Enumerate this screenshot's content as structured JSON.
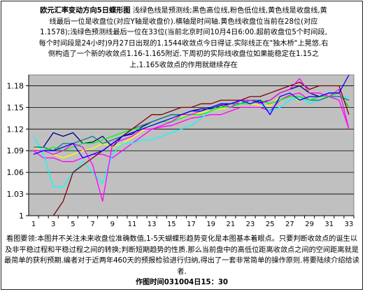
{
  "chart_data": {
    "type": "line",
    "title": "欧元汇率变动方向5日蝶形图",
    "description": "浅绿色线是预测线;黑色高位线,粉色低位线,黄色线是收盘线,黄线最后一位是收盘位(对应Y轴是收盘价).横轴是时间轴.黄色线收盘位当前在28位(对应1.1578);浅绿色预测线最后一位在33位(当前北京时间10月4日6:00.超前收盘位5个时间段,每个时间段是24小时)9月27日出现的1.1544收敛点今日得证.实际线正在\"独木桥\"上晃悠.右侧构造了一个新的收敛点1.16-1.165附近.下周初的实际线收盘位如果能稳定在1.15之上,1.165收敛点的作用就继续存在",
    "x_ticks": [
      "1",
      "3",
      "5",
      "7",
      "9",
      "11",
      "13",
      "15",
      "17",
      "19",
      "21",
      "23",
      "25",
      "27",
      "29",
      "31",
      "33"
    ],
    "y_ticks": [
      "1",
      "1.03",
      "1.06",
      "1.09",
      "1.12",
      "1.15",
      "1.18"
    ],
    "xlim": [
      1,
      33
    ],
    "ylim": [
      1.0,
      1.195
    ],
    "grid": true,
    "background": "#c0c0c0",
    "series": [
      {
        "color": "#000080",
        "values": [
          1.095,
          1.095,
          1.115,
          1.11,
          1.115,
          1.1,
          1.102,
          1.11,
          1.095,
          1.11,
          1.113,
          1.123,
          1.13,
          1.135,
          1.14,
          1.14,
          1.145,
          1.148,
          1.148,
          1.153,
          1.155,
          1.16,
          1.16,
          1.157,
          1.16,
          1.17,
          1.175,
          1.18,
          1.17,
          1.165,
          1.17,
          1.17,
          1.15
        ]
      },
      {
        "color": "#ff00ff",
        "values": [
          1.09,
          1.08,
          1.08,
          1.075,
          1.075,
          1.08,
          1.085,
          1.085,
          1.08,
          1.09,
          1.1,
          1.11,
          1.12,
          1.123,
          1.125,
          1.13,
          1.135,
          1.137,
          1.14,
          1.14,
          1.145,
          1.15,
          1.15,
          1.15,
          1.145,
          1.16,
          1.167,
          1.17,
          1.16,
          1.165,
          1.165,
          1.16,
          1.12
        ]
      },
      {
        "color": "#ffff00",
        "values": [
          1.095,
          1.09,
          1.085,
          1.08,
          1.085,
          1.09,
          1.093,
          1.1,
          1.095,
          1.1,
          1.108,
          1.117,
          1.125,
          1.13,
          1.135,
          1.138,
          1.14,
          1.143,
          1.145,
          1.148,
          1.15,
          1.155,
          1.155,
          1.153,
          1.152,
          1.165,
          1.17,
          1.158
        ]
      },
      {
        "color": "#00ffff",
        "values": [
          1.11,
          1.085,
          1.04,
          1.04,
          1.06,
          1.075,
          1.06,
          1.045,
          1.085,
          1.1,
          1.1,
          1.105,
          1.105,
          1.11,
          1.115,
          1.12,
          1.125,
          1.135,
          1.145,
          1.15,
          1.15,
          1.155,
          1.16,
          1.155,
          1.145,
          1.15,
          1.16,
          1.165,
          1.155,
          1.16,
          1.165,
          1.165,
          1.165
        ]
      },
      {
        "color": "#008080",
        "values": [
          1.095,
          1.095,
          1.09,
          1.1,
          1.1,
          1.105,
          1.11,
          1.1,
          1.105,
          1.11,
          1.12,
          1.125,
          1.13,
          1.135,
          1.14,
          1.14,
          1.145,
          1.145,
          1.15,
          1.15,
          1.155,
          1.155,
          1.16,
          1.16,
          1.155,
          1.16,
          1.165,
          1.165,
          1.16,
          1.16,
          1.165,
          1.165,
          1.16
        ]
      },
      {
        "color": "#00ff00",
        "values": [
          1.09,
          1.09,
          1.095,
          1.09,
          1.095,
          1.1,
          1.1,
          1.105,
          1.11,
          1.115,
          1.12,
          1.12,
          1.125,
          1.13,
          1.13,
          1.135,
          1.14,
          1.14,
          1.145,
          1.15,
          1.15,
          1.155,
          1.155,
          1.16,
          1.155,
          1.16,
          1.165,
          1.165,
          1.16,
          1.165,
          1.165,
          1.17,
          1.15
        ]
      },
      {
        "color": "#800000",
        "values": [
          null,
          null,
          1.0,
          1.02,
          1.06,
          1.07,
          1.08,
          1.09,
          1.1,
          1.11,
          1.12,
          1.13,
          1.14,
          1.14,
          1.145,
          1.15,
          1.15,
          1.155,
          1.155,
          1.16,
          1.16,
          1.16,
          1.165,
          1.165,
          1.17,
          1.175,
          1.18,
          1.185,
          1.175,
          1.18,
          1.18,
          1.18,
          1.14
        ]
      },
      {
        "color": "#ff00ff",
        "values": [
          1.09,
          1.09,
          1.085,
          1.09,
          1.1,
          1.095,
          1.07,
          1.02,
          1.1,
          1.105,
          1.11,
          1.12,
          1.12,
          1.125,
          1.13,
          1.14,
          1.14,
          1.145,
          1.15,
          1.155,
          1.15,
          1.16,
          1.16,
          1.155,
          1.16,
          1.17,
          1.175,
          1.19,
          1.17,
          1.17,
          1.165,
          1.175,
          1.12
        ]
      },
      {
        "color": "#0000ff",
        "values": [
          1.085,
          1.09,
          1.09,
          1.095,
          1.1,
          1.08,
          1.085,
          1.09,
          1.1,
          1.11,
          1.115,
          1.12,
          1.125,
          1.13,
          1.135,
          1.14,
          1.145,
          1.145,
          1.15,
          1.155,
          1.155,
          1.16,
          1.155,
          1.16,
          1.14,
          1.165,
          1.17,
          1.16,
          1.165,
          1.165,
          1.17,
          1.17,
          1.195
        ]
      }
    ]
  },
  "footer": {
    "note": "看图要领:本图并不关注未来收盘位准确数值,1-5天蝴蝶形趋势变化是本图基本着眼点。只要判断收敛点的诞生以及非平稳过程和平稳过程之间的转换;判断短期趋势的性质.那么当前盘中的高低位距离收敛点之间的空间距离就是最简单的获利预期.编者对于近两年460天的预报检验进行归纳,得出了一套非常简单的操作原则.将要陆续介绍给读者.",
    "time": "作图时间031004日15：30"
  }
}
